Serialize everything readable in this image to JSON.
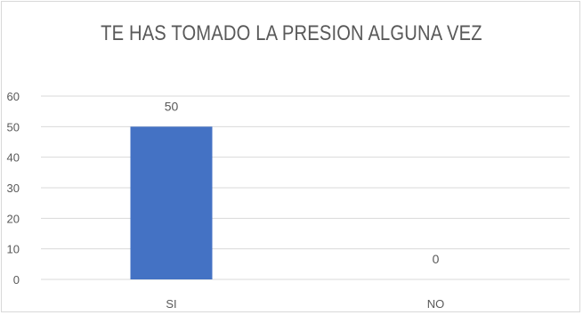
{
  "chart_data": {
    "type": "bar",
    "title": "TE HAS TOMADO LA PRESION ALGUNA VEZ",
    "categories": [
      "SI",
      "NO"
    ],
    "values": [
      50,
      0
    ],
    "data_labels": [
      "50",
      "0"
    ],
    "ylim": [
      0,
      60
    ],
    "yticks": [
      0,
      10,
      20,
      30,
      40,
      50,
      60
    ],
    "ytick_labels": [
      "0",
      "10",
      "20",
      "30",
      "40",
      "50",
      "60"
    ],
    "grid": true,
    "legend": "none",
    "bar_color": "#4472c4",
    "gridline_color": "#d9d9d9",
    "text_color": "#595959"
  }
}
